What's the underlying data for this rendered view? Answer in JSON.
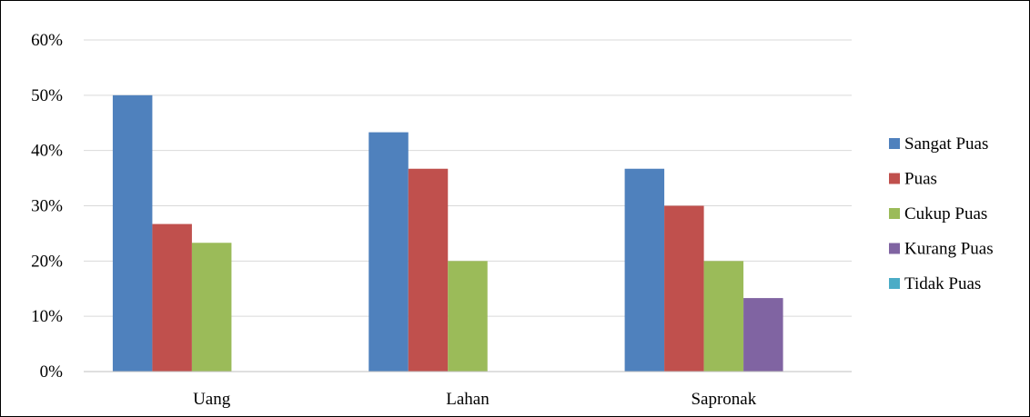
{
  "chart_data": {
    "type": "bar",
    "title": "",
    "xlabel": "",
    "ylabel": "",
    "categories": [
      "Uang",
      "Lahan",
      "Sapronak"
    ],
    "series": [
      {
        "name": "Sangat Puas",
        "color": "#4F81BD",
        "values": [
          50,
          43.3,
          36.7
        ]
      },
      {
        "name": "Puas",
        "color": "#C0504D",
        "values": [
          26.7,
          36.7,
          30
        ]
      },
      {
        "name": "Cukup Puas",
        "color": "#9BBB59",
        "values": [
          23.3,
          20,
          20
        ]
      },
      {
        "name": "Kurang Puas",
        "color": "#8064A2",
        "values": [
          0,
          0,
          13.3
        ]
      },
      {
        "name": "Tidak Puas",
        "color": "#4BACC6",
        "values": [
          0,
          0,
          0
        ]
      }
    ],
    "ylim": [
      0,
      60
    ],
    "yticks": [
      0,
      10,
      20,
      30,
      40,
      50,
      60
    ],
    "ytick_labels": [
      "0%",
      "10%",
      "20%",
      "30%",
      "40%",
      "50%",
      "60%"
    ],
    "grid": true,
    "legend_position": "right"
  }
}
